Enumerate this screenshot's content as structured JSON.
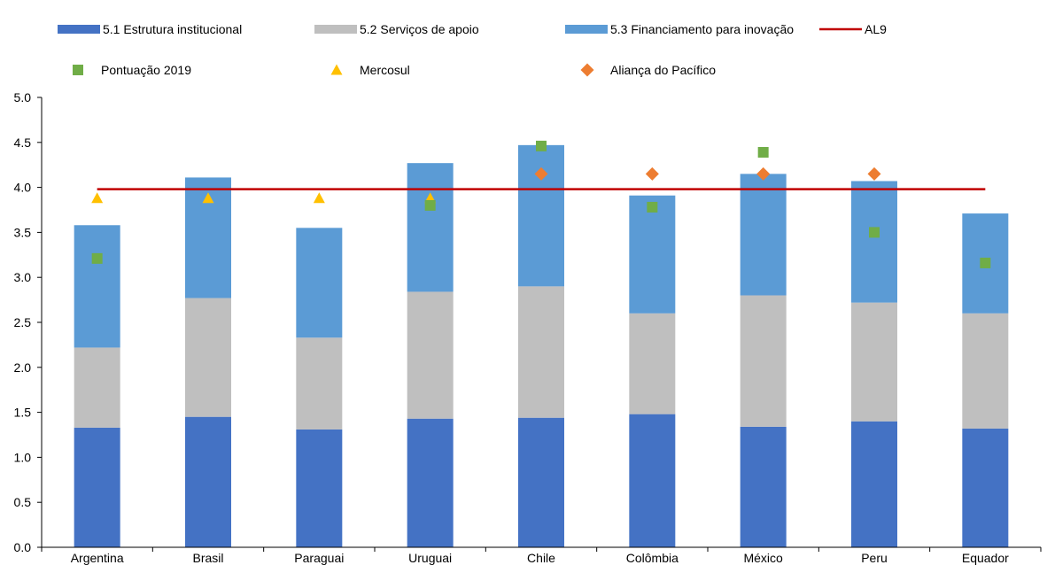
{
  "chart_data": {
    "type": "bar",
    "stacked": true,
    "categories": [
      "Argentina",
      "Brasil",
      "Paraguai",
      "Uruguai",
      "Chile",
      "Colômbia",
      "México",
      "Peru",
      "Equador"
    ],
    "series": [
      {
        "name": "5.1 Estrutura institucional",
        "kind": "bar",
        "color": "#4472c4",
        "values": [
          1.33,
          1.45,
          1.31,
          1.43,
          1.44,
          1.48,
          1.34,
          1.4,
          1.32
        ]
      },
      {
        "name": "5.2 Serviços de apoio",
        "kind": "bar",
        "color": "#bfbfbf",
        "values": [
          0.89,
          1.32,
          1.02,
          1.41,
          1.46,
          1.12,
          1.46,
          1.32,
          1.28
        ]
      },
      {
        "name": "5.3 Financiamento para inovação",
        "kind": "bar",
        "color": "#5b9bd5",
        "values": [
          1.36,
          1.34,
          1.22,
          1.43,
          1.57,
          1.31,
          1.35,
          1.35,
          1.11
        ]
      },
      {
        "name": "AL9",
        "kind": "line",
        "color": "#c00000",
        "value": 3.98
      },
      {
        "name": "Pontuação 2019",
        "kind": "marker",
        "marker": "square",
        "color": "#70ad47",
        "values": [
          3.21,
          null,
          null,
          3.8,
          4.46,
          3.78,
          4.39,
          3.5,
          3.16
        ]
      },
      {
        "name": "Mercosul",
        "kind": "marker",
        "marker": "triangle",
        "color": "#ffc000",
        "values": [
          3.88,
          3.88,
          3.88,
          3.88,
          null,
          null,
          null,
          null,
          null
        ]
      },
      {
        "name": "Aliança do Pacífico",
        "kind": "marker",
        "marker": "diamond",
        "color": "#ed7d31",
        "values": [
          null,
          null,
          null,
          null,
          4.15,
          4.15,
          4.15,
          4.15,
          null
        ]
      }
    ],
    "yticks": [
      "0.0",
      "0.5",
      "1.0",
      "1.5",
      "2.0",
      "2.5",
      "3.0",
      "3.5",
      "4.0",
      "4.5",
      "5.0"
    ],
    "ylim": [
      0,
      5
    ],
    "grid": false,
    "legend_position": "top"
  }
}
